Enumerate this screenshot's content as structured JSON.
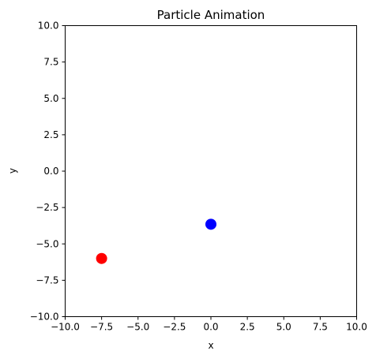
{
  "chart_data": {
    "type": "scatter",
    "title": "Particle Animation",
    "xlabel": "x",
    "ylabel": "y",
    "xlim": [
      -10,
      10
    ],
    "ylim": [
      -10,
      10
    ],
    "grid": false,
    "xticks": [
      -10.0,
      -7.5,
      -5.0,
      -2.5,
      0.0,
      2.5,
      5.0,
      7.5,
      10.0
    ],
    "yticks": [
      -10.0,
      -7.5,
      -5.0,
      -2.5,
      0.0,
      2.5,
      5.0,
      7.5,
      10.0
    ],
    "xtick_labels": [
      "−10.0",
      "−7.5",
      "−5.0",
      "−2.5",
      "0.0",
      "2.5",
      "5.0",
      "7.5",
      "10.0"
    ],
    "ytick_labels": [
      "−10.0",
      "−7.5",
      "−5.0",
      "−2.5",
      "0.0",
      "2.5",
      "5.0",
      "7.5",
      "10.0"
    ],
    "points": [
      {
        "x": -7.5,
        "y": -6.0,
        "color": "#ff0000"
      },
      {
        "x": 0.0,
        "y": -3.65,
        "color": "#0000ff"
      }
    ]
  }
}
